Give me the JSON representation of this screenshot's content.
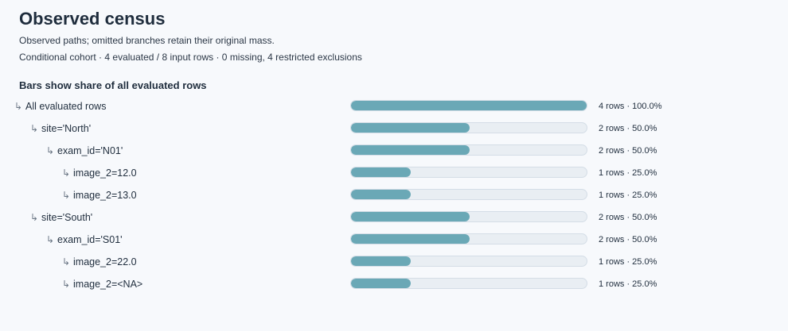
{
  "header": {
    "title": "Observed census",
    "subtitle": "Observed paths; omitted branches retain their original mass.",
    "meta": "Conditional cohort · 4 evaluated / 8 input rows · 0 missing, 4 restricted exclusions"
  },
  "section": {
    "title": "Bars show share of all evaluated rows"
  },
  "arrow_glyph": "↳",
  "rows": [
    {
      "label": "All evaluated rows",
      "depth": 0,
      "share": 1.0,
      "value_text": "4 rows · 100.0%"
    },
    {
      "label": "site='North'",
      "depth": 1,
      "share": 0.5,
      "value_text": "2 rows · 50.0%"
    },
    {
      "label": "exam_id='N01'",
      "depth": 2,
      "share": 0.5,
      "value_text": "2 rows · 50.0%"
    },
    {
      "label": "image_2=12.0",
      "depth": 3,
      "share": 0.25,
      "value_text": "1 rows · 25.0%"
    },
    {
      "label": "image_2=13.0",
      "depth": 3,
      "share": 0.25,
      "value_text": "1 rows · 25.0%"
    },
    {
      "label": "site='South'",
      "depth": 1,
      "share": 0.5,
      "value_text": "2 rows · 50.0%"
    },
    {
      "label": "exam_id='S01'",
      "depth": 2,
      "share": 0.5,
      "value_text": "2 rows · 50.0%"
    },
    {
      "label": "image_2=22.0",
      "depth": 3,
      "share": 0.25,
      "value_text": "1 rows · 25.0%"
    },
    {
      "label": "image_2=<NA>",
      "depth": 3,
      "share": 0.25,
      "value_text": "1 rows · 25.0%"
    }
  ],
  "colors": {
    "bar_fill": "#6aa8b6",
    "bar_track": "#e9eef3",
    "background": "#f7f9fc"
  }
}
